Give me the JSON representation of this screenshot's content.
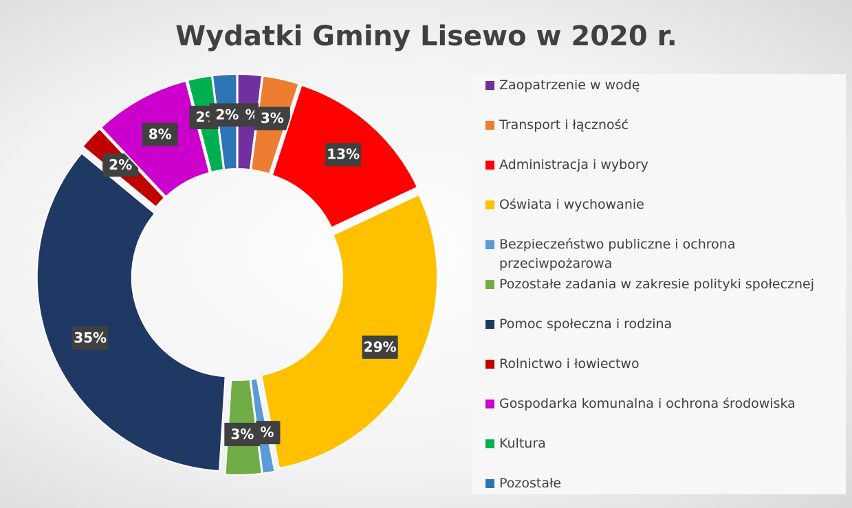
{
  "chart_data": {
    "type": "donut",
    "title": "Wydatki Gminy Lisewo w 2020 r.",
    "categories": [
      "Zaopatrzenie w wodę",
      "Transport i łączność",
      "Administracja i wybory",
      "Oświata i wychowanie",
      "Bezpieczeństwo publiczne i ochrona przeciwpożarowa",
      "Pozostałe zadania w zakresie polityki społecznej",
      "Pomoc społeczna i rodzina",
      "Rolnictwo i łowiectwo",
      "Gospodarka komunalna i ochrona środowiska",
      "Kultura",
      "Pozostałe"
    ],
    "values": [
      2,
      3,
      13,
      29,
      1,
      3,
      35,
      2,
      8,
      2,
      2
    ],
    "value_labels": [
      "2%",
      "3%",
      "13%",
      "29%",
      "1%",
      "3%",
      "35%",
      "2%",
      "8%",
      "2%",
      "2%"
    ],
    "colors": [
      "#7030a0",
      "#ed7d31",
      "#ff0000",
      "#ffc000",
      "#5b9bd5",
      "#70ad47",
      "#1f3864",
      "#c00000",
      "#cc00cc",
      "#00b050",
      "#2e75b6"
    ],
    "legend": "right"
  }
}
